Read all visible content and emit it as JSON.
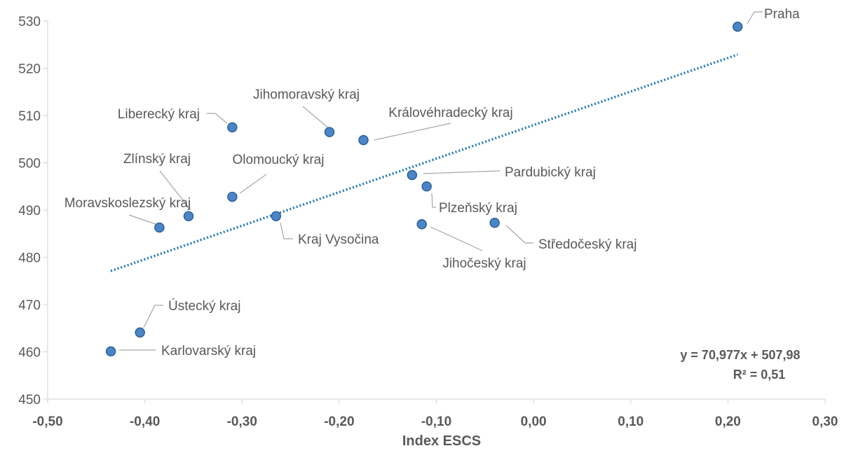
{
  "chart_data": {
    "type": "scatter",
    "title": "",
    "xlabel": "Index ESCS",
    "ylabel": "",
    "xlim": [
      -0.5,
      0.3
    ],
    "ylim": [
      450,
      530
    ],
    "x_ticks": [
      "-0,50",
      "-0,40",
      "-0,30",
      "-0,20",
      "-0,10",
      "0,00",
      "0,10",
      "0,20",
      "0,30"
    ],
    "y_ticks": [
      "450",
      "460",
      "470",
      "480",
      "490",
      "500",
      "510",
      "520",
      "530"
    ],
    "grid": false,
    "points": [
      {
        "label": "Praha",
        "x": 0.21,
        "y": 528.8
      },
      {
        "label": "Liberecký kraj",
        "x": -0.31,
        "y": 507.5
      },
      {
        "label": "Jihomoravský kraj",
        "x": -0.21,
        "y": 506.5
      },
      {
        "label": "Královéhradecký kraj",
        "x": -0.175,
        "y": 504.8
      },
      {
        "label": "Pardubický kraj",
        "x": -0.125,
        "y": 497.4
      },
      {
        "label": "Plzeňský kraj",
        "x": -0.11,
        "y": 495.0
      },
      {
        "label": "Olomoucký kraj",
        "x": -0.31,
        "y": 492.8
      },
      {
        "label": "Zlínský kraj",
        "x": -0.355,
        "y": 488.7
      },
      {
        "label": "Kraj Vysočina",
        "x": -0.265,
        "y": 488.7
      },
      {
        "label": "Moravskoslezský kraj",
        "x": -0.385,
        "y": 486.3
      },
      {
        "label": "Středočeský kraj",
        "x": -0.04,
        "y": 487.3
      },
      {
        "label": "Jihočeský kraj",
        "x": -0.115,
        "y": 487.0
      },
      {
        "label": "Ústecký kraj",
        "x": -0.405,
        "y": 464.1
      },
      {
        "label": "Karlovarský kraj",
        "x": -0.435,
        "y": 460.1
      }
    ],
    "trendline": {
      "type": "linear",
      "slope": 70.977,
      "intercept": 507.98,
      "x_range": [
        -0.435,
        0.21
      ],
      "equation": "y = 70,977x + 507,98",
      "r_squared": "R² = 0,51"
    },
    "colors": {
      "marker_fill": "#4a86c5",
      "marker_stroke": "#2e5f99",
      "trendline": "#1f77b8",
      "leader": "#a6a6a6",
      "axis": "#d0d0d0",
      "text": "#595959"
    }
  }
}
